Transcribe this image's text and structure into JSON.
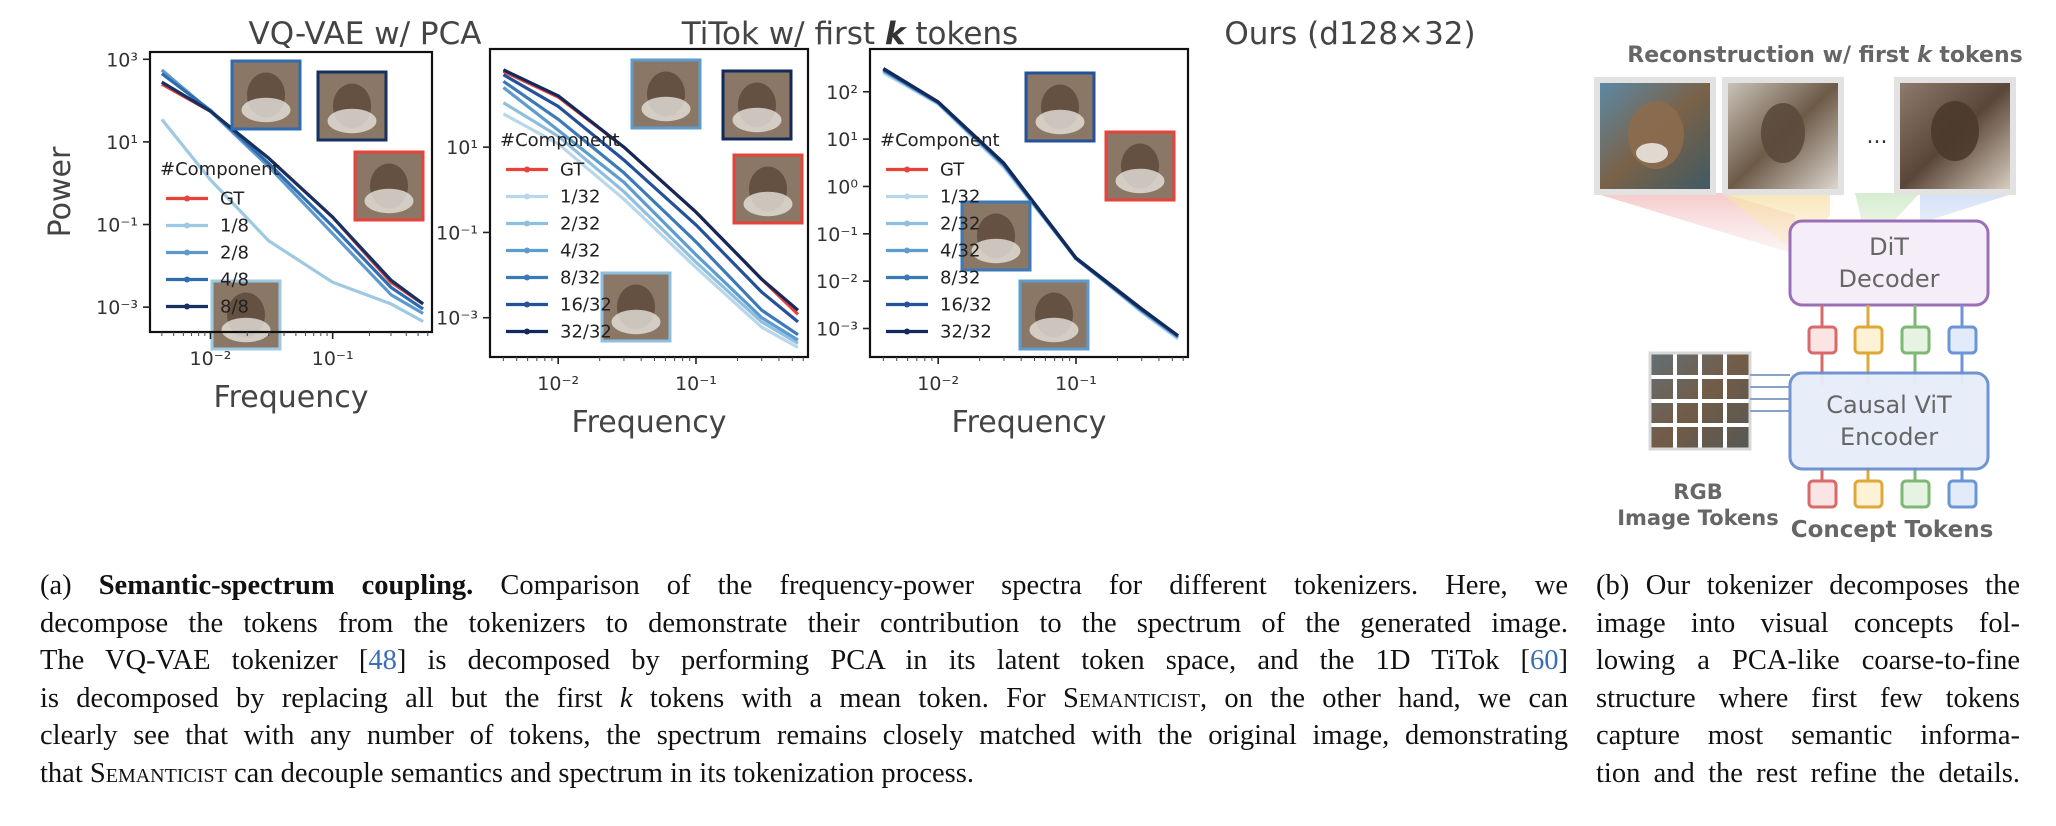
{
  "figure": {
    "panels": [
      {
        "id": "vqvae",
        "title": "VQ-VAE w/ PCA"
      },
      {
        "id": "titok",
        "title_prefix": "TiTok w/ first ",
        "title_k": "k",
        "title_suffix": " tokens"
      },
      {
        "id": "ours",
        "title": "Ours (d128×32)"
      }
    ],
    "x_label": "Frequency",
    "y_label": "Power",
    "legend_title": "#Component"
  },
  "chart_data": [
    {
      "type": "line",
      "title": "VQ-VAE w/ PCA",
      "xlabel": "Frequency",
      "ylabel": "Power",
      "x_scale": "log",
      "y_scale": "log",
      "xlim": [
        0.0032,
        0.65
      ],
      "ylim": [
        0.00025,
        1500
      ],
      "x_ticks": [
        {
          "v": 0.01,
          "label": "10⁻²"
        },
        {
          "v": 0.1,
          "label": "10⁻¹"
        }
      ],
      "y_ticks": [
        {
          "v": 1000,
          "label": "10³"
        },
        {
          "v": 10,
          "label": "10¹"
        },
        {
          "v": 0.1,
          "label": "10⁻¹"
        },
        {
          "v": 0.001,
          "label": "10⁻³"
        }
      ],
      "legend_location": "lower-left",
      "series": [
        {
          "name": "GT",
          "color": "#e8423a",
          "x": [
            0.004,
            0.01,
            0.03,
            0.1,
            0.3,
            0.55
          ],
          "y": [
            250,
            55,
            4,
            0.15,
            0.004,
            0.0012
          ]
        },
        {
          "name": "1/8",
          "color": "#9ec9e2",
          "x": [
            0.004,
            0.01,
            0.03,
            0.1,
            0.3,
            0.55
          ],
          "y": [
            35,
            1.2,
            0.04,
            0.004,
            0.0012,
            0.00045
          ]
        },
        {
          "name": "2/8",
          "color": "#5d9acb",
          "x": [
            0.004,
            0.01,
            0.03,
            0.1,
            0.3,
            0.55
          ],
          "y": [
            550,
            55,
            2.5,
            0.06,
            0.002,
            0.0007
          ]
        },
        {
          "name": "4/8",
          "color": "#2f6cb0",
          "x": [
            0.004,
            0.01,
            0.03,
            0.1,
            0.3,
            0.55
          ],
          "y": [
            450,
            58,
            3,
            0.09,
            0.003,
            0.0009
          ]
        },
        {
          "name": "8/8",
          "color": "#16305f",
          "x": [
            0.004,
            0.01,
            0.03,
            0.1,
            0.3,
            0.55
          ],
          "y": [
            280,
            55,
            4,
            0.15,
            0.0045,
            0.0012
          ]
        }
      ]
    },
    {
      "type": "line",
      "title": "TiTok w/ first k tokens",
      "xlabel": "Frequency",
      "ylabel": "",
      "x_scale": "log",
      "y_scale": "log",
      "xlim": [
        0.0032,
        0.65
      ],
      "ylim": [
        0.00012,
        2000
      ],
      "x_ticks": [
        {
          "v": 0.01,
          "label": "10⁻²"
        },
        {
          "v": 0.1,
          "label": "10⁻¹"
        }
      ],
      "y_ticks": [
        {
          "v": 10,
          "label": "10¹"
        },
        {
          "v": 0.1,
          "label": "10⁻¹"
        },
        {
          "v": 0.001,
          "label": "10⁻³"
        }
      ],
      "legend_location": "lower-left",
      "series": [
        {
          "name": "GT",
          "color": "#e8423a",
          "x": [
            0.004,
            0.01,
            0.03,
            0.1,
            0.3,
            0.55
          ],
          "y": [
            600,
            150,
            10,
            0.3,
            0.008,
            0.0012
          ]
        },
        {
          "name": "1/32",
          "color": "#b9d7ea",
          "x": [
            0.004,
            0.01,
            0.03,
            0.1,
            0.3,
            0.55
          ],
          "y": [
            60,
            12,
            0.6,
            0.015,
            0.0006,
            0.0002
          ]
        },
        {
          "name": "2/32",
          "color": "#8fbfdf",
          "x": [
            0.004,
            0.01,
            0.03,
            0.1,
            0.3,
            0.55
          ],
          "y": [
            110,
            18,
            0.9,
            0.02,
            0.0008,
            0.00025
          ]
        },
        {
          "name": "4/32",
          "color": "#5e9cce",
          "x": [
            0.004,
            0.01,
            0.03,
            0.1,
            0.3,
            0.55
          ],
          "y": [
            250,
            25,
            1.5,
            0.03,
            0.001,
            0.0003
          ]
        },
        {
          "name": "8/32",
          "color": "#3b79b8",
          "x": [
            0.004,
            0.01,
            0.03,
            0.1,
            0.3,
            0.55
          ],
          "y": [
            350,
            45,
            2.5,
            0.06,
            0.0015,
            0.0004
          ]
        },
        {
          "name": "16/32",
          "color": "#23519a",
          "x": [
            0.004,
            0.01,
            0.03,
            0.1,
            0.3,
            0.55
          ],
          "y": [
            500,
            90,
            5,
            0.15,
            0.004,
            0.0008
          ]
        },
        {
          "name": "32/32",
          "color": "#13295a",
          "x": [
            0.004,
            0.01,
            0.03,
            0.1,
            0.3,
            0.55
          ],
          "y": [
            650,
            160,
            10,
            0.3,
            0.008,
            0.0015
          ]
        }
      ]
    },
    {
      "type": "line",
      "title": "Ours (d128×32)",
      "xlabel": "Frequency",
      "ylabel": "",
      "x_scale": "log",
      "y_scale": "log",
      "xlim": [
        0.0032,
        0.65
      ],
      "ylim": [
        0.00025,
        800
      ],
      "x_ticks": [
        {
          "v": 0.01,
          "label": "10⁻²"
        },
        {
          "v": 0.1,
          "label": "10⁻¹"
        }
      ],
      "y_ticks": [
        {
          "v": 100,
          "label": "10²"
        },
        {
          "v": 10,
          "label": "10¹"
        },
        {
          "v": 1,
          "label": "10⁰"
        },
        {
          "v": 0.1,
          "label": "10⁻¹"
        },
        {
          "v": 0.01,
          "label": "10⁻²"
        },
        {
          "v": 0.001,
          "label": "10⁻³"
        }
      ],
      "legend_location": "lower-left",
      "series": [
        {
          "name": "GT",
          "color": "#e8423a",
          "x": [
            0.004,
            0.01,
            0.03,
            0.1,
            0.3,
            0.55
          ],
          "y": [
            300,
            60,
            3,
            0.03,
            0.0025,
            0.0007
          ]
        },
        {
          "name": "1/32",
          "color": "#b9d7ea",
          "x": [
            0.004,
            0.01,
            0.03,
            0.1,
            0.3,
            0.55
          ],
          "y": [
            250,
            55,
            2.5,
            0.03,
            0.0022,
            0.0006
          ]
        },
        {
          "name": "2/32",
          "color": "#8fbfdf",
          "x": [
            0.004,
            0.01,
            0.03,
            0.1,
            0.3,
            0.55
          ],
          "y": [
            270,
            57,
            2.7,
            0.03,
            0.0023,
            0.00065
          ]
        },
        {
          "name": "4/32",
          "color": "#5e9cce",
          "x": [
            0.004,
            0.01,
            0.03,
            0.1,
            0.3,
            0.55
          ],
          "y": [
            280,
            58,
            2.8,
            0.03,
            0.0024,
            0.00065
          ]
        },
        {
          "name": "8/32",
          "color": "#3b79b8",
          "x": [
            0.004,
            0.01,
            0.03,
            0.1,
            0.3,
            0.55
          ],
          "y": [
            290,
            59,
            2.9,
            0.03,
            0.0025,
            0.0007
          ]
        },
        {
          "name": "16/32",
          "color": "#23519a",
          "x": [
            0.004,
            0.01,
            0.03,
            0.1,
            0.3,
            0.55
          ],
          "y": [
            300,
            60,
            3,
            0.03,
            0.0025,
            0.0007
          ]
        },
        {
          "name": "32/32",
          "color": "#13295a",
          "x": [
            0.004,
            0.01,
            0.03,
            0.1,
            0.3,
            0.55
          ],
          "y": [
            310,
            61,
            3.1,
            0.031,
            0.0026,
            0.0007
          ]
        }
      ]
    }
  ],
  "diagram": {
    "title_prefix": "Reconstruction w/ first ",
    "title_k": "k",
    "title_suffix": " tokens",
    "ellipsis": "...",
    "decoder_line1": "DiT",
    "decoder_line2": "Decoder",
    "encoder_line1": "Causal ViT",
    "encoder_line2": "Encoder",
    "rgb_label_line1": "RGB",
    "rgb_label_line2": "Image Tokens",
    "concept_label": "Concept Tokens",
    "token_colors": [
      "#d96a6a",
      "#e0a838",
      "#7fb874",
      "#6b95d6"
    ],
    "decoder_color": "#9b6fb8",
    "encoder_color": "#6b8fd0"
  },
  "caption_a": {
    "label": "(a) ",
    "bold": "Semantic-spectrum coupling.",
    "l1_rest": " Comparison of the frequency-power spectra for different tokenizers. Here, we",
    "l2": "decompose the tokens from the tokenizers to demonstrate their contribution to the spectrum of the generated image.",
    "l3_a": "The VQ-VAE tokenizer [",
    "l3_cite1": "48",
    "l3_b": "] is decomposed by performing PCA in its latent token space, and the 1D TiTok [",
    "l3_cite2": "60",
    "l3_c": "]",
    "l4_a": "is decomposed by replacing all but the first ",
    "l4_k": "k",
    "l4_b": " tokens with a mean token. For ",
    "l4_sc": "Semanticist",
    "l4_c": ", on the other hand, we can",
    "l5": "clearly see that with any number of tokens, the spectrum remains closely matched with the original image, demonstrating",
    "l6_a": "that ",
    "l6_sc": "Semanticist",
    "l6_b": " can decouple semantics and spectrum in its tokenization process."
  },
  "caption_b": {
    "lines": [
      "(b) Our tokenizer decomposes the",
      "image into visual concepts fol-",
      "lowing a PCA-like coarse-to-fine",
      "structure where first few tokens",
      "capture most semantic informa-",
      "tion and the rest refine the details."
    ]
  }
}
